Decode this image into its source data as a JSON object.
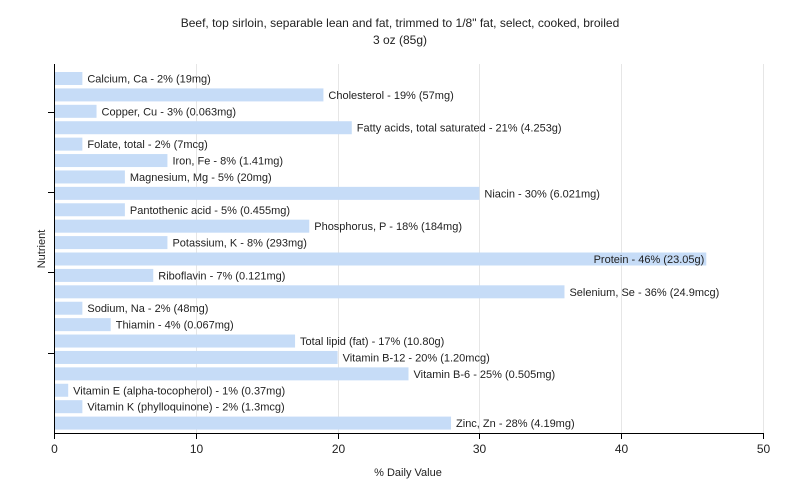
{
  "chart_data": {
    "type": "bar",
    "orientation": "horizontal",
    "title": "Beef, top sirloin, separable lean and fat, trimmed to 1/8\" fat, select, cooked, broiled",
    "subtitle": "3 oz (85g)",
    "xlabel": "% Daily Value",
    "ylabel": "Nutrient",
    "xlim": [
      0,
      50
    ],
    "xticks": [
      0,
      10,
      20,
      30,
      40,
      50
    ],
    "grid": true,
    "bar_color": "#c6dcf7",
    "categories": [
      "Calcium, Ca",
      "Cholesterol",
      "Copper, Cu",
      "Fatty acids, total saturated",
      "Folate, total",
      "Iron, Fe",
      "Magnesium, Mg",
      "Niacin",
      "Pantothenic acid",
      "Phosphorus, P",
      "Potassium, K",
      "Protein",
      "Riboflavin",
      "Selenium, Se",
      "Sodium, Na",
      "Thiamin",
      "Total lipid (fat)",
      "Vitamin B-12",
      "Vitamin B-6",
      "Vitamin E (alpha-tocopherol)",
      "Vitamin K (phylloquinone)",
      "Zinc, Zn"
    ],
    "values": [
      2,
      19,
      3,
      21,
      2,
      8,
      5,
      30,
      5,
      18,
      8,
      46,
      7,
      36,
      2,
      4,
      17,
      20,
      25,
      1,
      2,
      28
    ],
    "labels": [
      "Calcium, Ca - 2% (19mg)",
      "Cholesterol - 19% (57mg)",
      "Copper, Cu - 3% (0.063mg)",
      "Fatty acids, total saturated - 21% (4.253g)",
      "Folate, total - 2% (7mcg)",
      "Iron, Fe - 8% (1.41mg)",
      "Magnesium, Mg - 5% (20mg)",
      "Niacin - 30% (6.021mg)",
      "Pantothenic acid - 5% (0.455mg)",
      "Phosphorus, P - 18% (184mg)",
      "Potassium, K - 8% (293mg)",
      "Protein - 46% (23.05g)",
      "Riboflavin - 7% (0.121mg)",
      "Selenium, Se - 36% (24.9mcg)",
      "Sodium, Na - 2% (48mg)",
      "Thiamin - 4% (0.067mg)",
      "Total lipid (fat) - 17% (10.80g)",
      "Vitamin B-12 - 20% (1.20mcg)",
      "Vitamin B-6 - 25% (0.505mg)",
      "Vitamin E (alpha-tocopherol) - 1% (0.37mg)",
      "Vitamin K (phylloquinone) - 2% (1.3mcg)",
      "Zinc, Zn - 28% (4.19mg)"
    ]
  }
}
